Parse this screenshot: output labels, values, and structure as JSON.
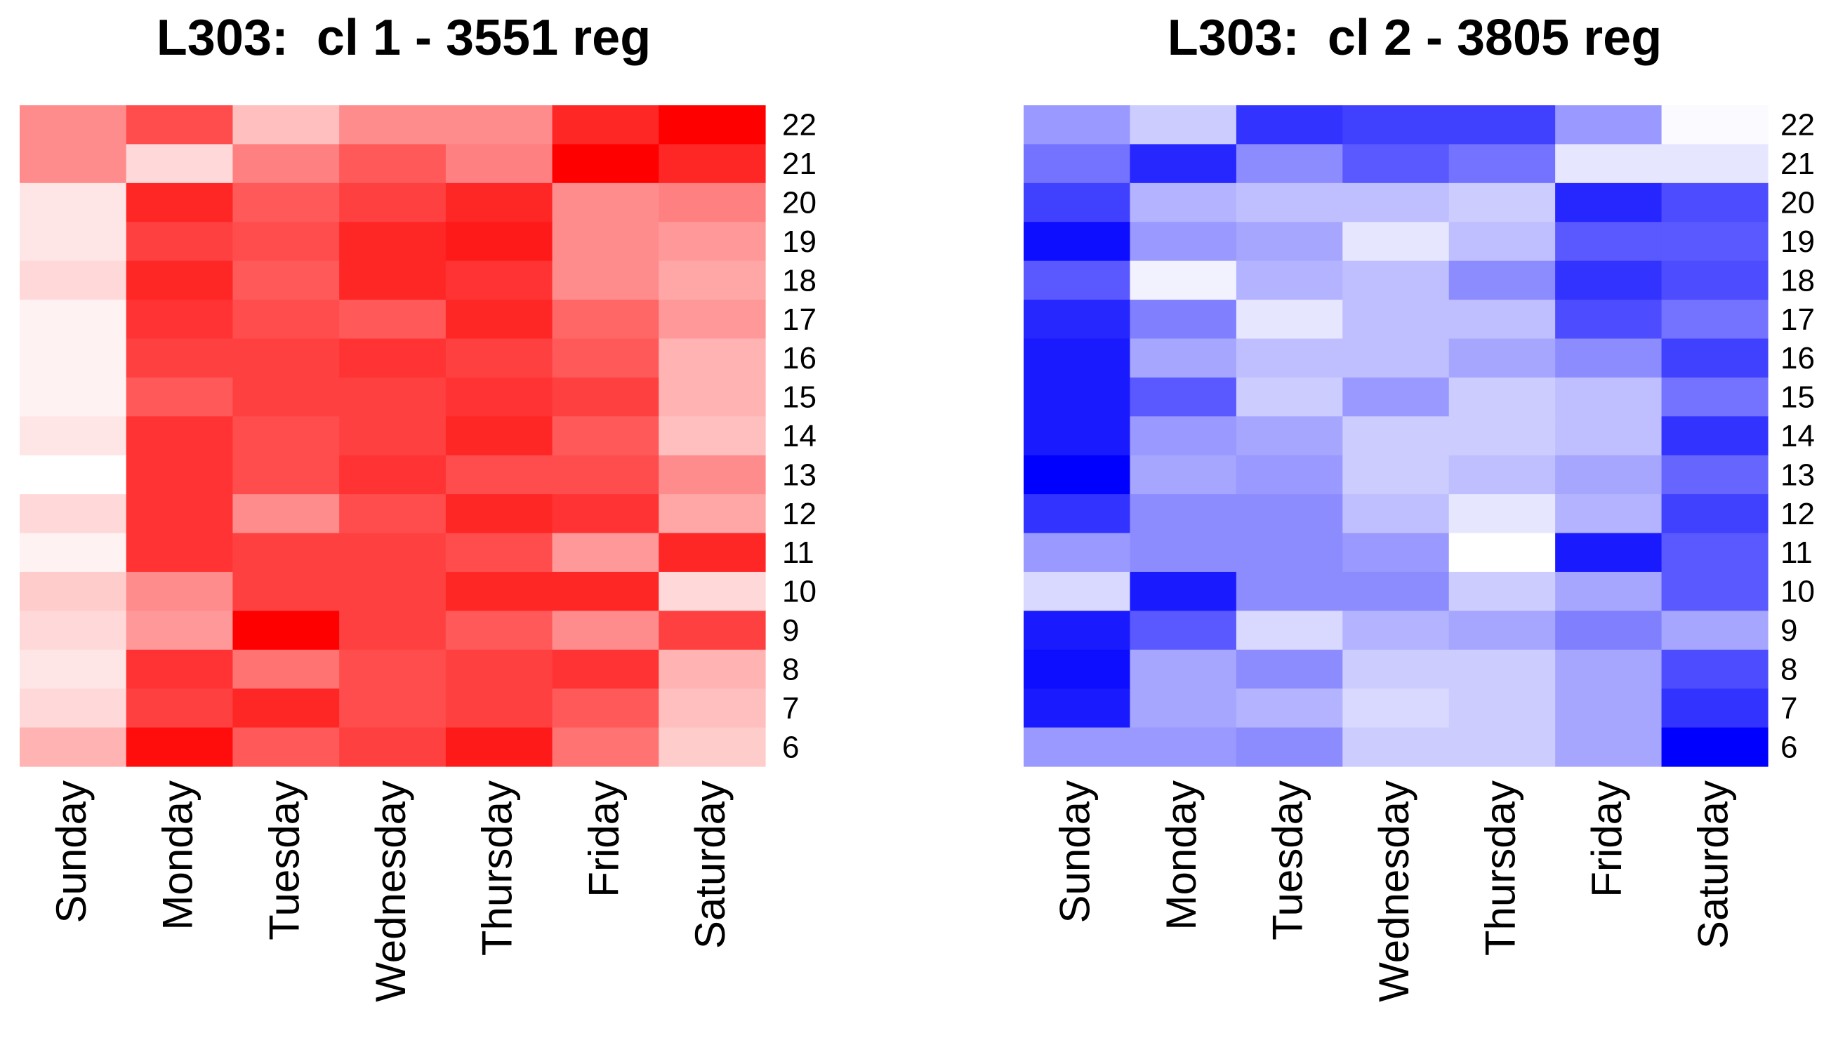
{
  "chart_data": [
    {
      "type": "heatmap",
      "title": "L303:  cl 1 - 3551 reg",
      "color_scale": {
        "low": "#ffffff",
        "high": "#ff0000"
      },
      "x_categories": [
        "Sunday",
        "Monday",
        "Tuesday",
        "Wednesday",
        "Thursday",
        "Friday",
        "Saturday"
      ],
      "y_categories": [
        "22",
        "21",
        "20",
        "19",
        "18",
        "17",
        "16",
        "15",
        "14",
        "13",
        "12",
        "11",
        "10",
        "9",
        "8",
        "7",
        "6"
      ],
      "values": [
        [
          0.45,
          0.7,
          0.25,
          0.45,
          0.45,
          0.85,
          1.0
        ],
        [
          0.45,
          0.15,
          0.5,
          0.65,
          0.5,
          1.0,
          0.85
        ],
        [
          0.1,
          0.85,
          0.65,
          0.75,
          0.85,
          0.45,
          0.5
        ],
        [
          0.1,
          0.75,
          0.7,
          0.85,
          0.9,
          0.45,
          0.4
        ],
        [
          0.15,
          0.85,
          0.65,
          0.85,
          0.8,
          0.45,
          0.35
        ],
        [
          0.05,
          0.8,
          0.7,
          0.65,
          0.85,
          0.6,
          0.4
        ],
        [
          0.05,
          0.75,
          0.75,
          0.8,
          0.75,
          0.65,
          0.3
        ],
        [
          0.05,
          0.65,
          0.75,
          0.75,
          0.8,
          0.75,
          0.3
        ],
        [
          0.1,
          0.8,
          0.7,
          0.75,
          0.85,
          0.65,
          0.25
        ],
        [
          0.0,
          0.8,
          0.7,
          0.8,
          0.7,
          0.7,
          0.45
        ],
        [
          0.15,
          0.8,
          0.45,
          0.7,
          0.85,
          0.8,
          0.35
        ],
        [
          0.05,
          0.8,
          0.75,
          0.75,
          0.7,
          0.4,
          0.85
        ],
        [
          0.2,
          0.45,
          0.75,
          0.75,
          0.85,
          0.85,
          0.15
        ],
        [
          0.15,
          0.4,
          1.0,
          0.75,
          0.65,
          0.45,
          0.75
        ],
        [
          0.1,
          0.8,
          0.55,
          0.7,
          0.75,
          0.8,
          0.3
        ],
        [
          0.15,
          0.75,
          0.85,
          0.7,
          0.75,
          0.65,
          0.25
        ],
        [
          0.3,
          0.95,
          0.65,
          0.75,
          0.9,
          0.55,
          0.2
        ]
      ]
    },
    {
      "type": "heatmap",
      "title": "L303:  cl 2 - 3805 reg",
      "color_scale": {
        "low": "#ffffff",
        "high": "#0000ff"
      },
      "x_categories": [
        "Sunday",
        "Monday",
        "Tuesday",
        "Wednesday",
        "Thursday",
        "Friday",
        "Saturday"
      ],
      "y_categories": [
        "22",
        "21",
        "20",
        "19",
        "18",
        "17",
        "16",
        "15",
        "14",
        "13",
        "12",
        "11",
        "10",
        "9",
        "8",
        "7",
        "6"
      ],
      "values": [
        [
          0.4,
          0.2,
          0.8,
          0.75,
          0.75,
          0.4,
          0.02
        ],
        [
          0.55,
          0.85,
          0.45,
          0.65,
          0.55,
          0.1,
          0.1
        ],
        [
          0.75,
          0.3,
          0.25,
          0.25,
          0.2,
          0.85,
          0.7
        ],
        [
          0.95,
          0.4,
          0.35,
          0.1,
          0.25,
          0.65,
          0.65
        ],
        [
          0.65,
          0.05,
          0.3,
          0.25,
          0.45,
          0.8,
          0.7
        ],
        [
          0.85,
          0.5,
          0.1,
          0.25,
          0.25,
          0.7,
          0.55
        ],
        [
          0.9,
          0.35,
          0.25,
          0.25,
          0.35,
          0.45,
          0.75
        ],
        [
          0.9,
          0.65,
          0.2,
          0.4,
          0.2,
          0.25,
          0.55
        ],
        [
          0.9,
          0.4,
          0.35,
          0.2,
          0.2,
          0.25,
          0.8
        ],
        [
          1.0,
          0.35,
          0.4,
          0.2,
          0.25,
          0.35,
          0.6
        ],
        [
          0.8,
          0.45,
          0.45,
          0.25,
          0.1,
          0.3,
          0.75
        ],
        [
          0.4,
          0.45,
          0.45,
          0.4,
          0.0,
          0.9,
          0.65
        ],
        [
          0.15,
          0.9,
          0.45,
          0.45,
          0.2,
          0.35,
          0.65
        ],
        [
          0.9,
          0.65,
          0.15,
          0.3,
          0.35,
          0.5,
          0.35
        ],
        [
          0.95,
          0.35,
          0.45,
          0.2,
          0.2,
          0.35,
          0.7
        ],
        [
          0.9,
          0.35,
          0.3,
          0.15,
          0.2,
          0.35,
          0.8
        ],
        [
          0.4,
          0.4,
          0.45,
          0.2,
          0.2,
          0.35,
          1.0
        ]
      ]
    }
  ]
}
